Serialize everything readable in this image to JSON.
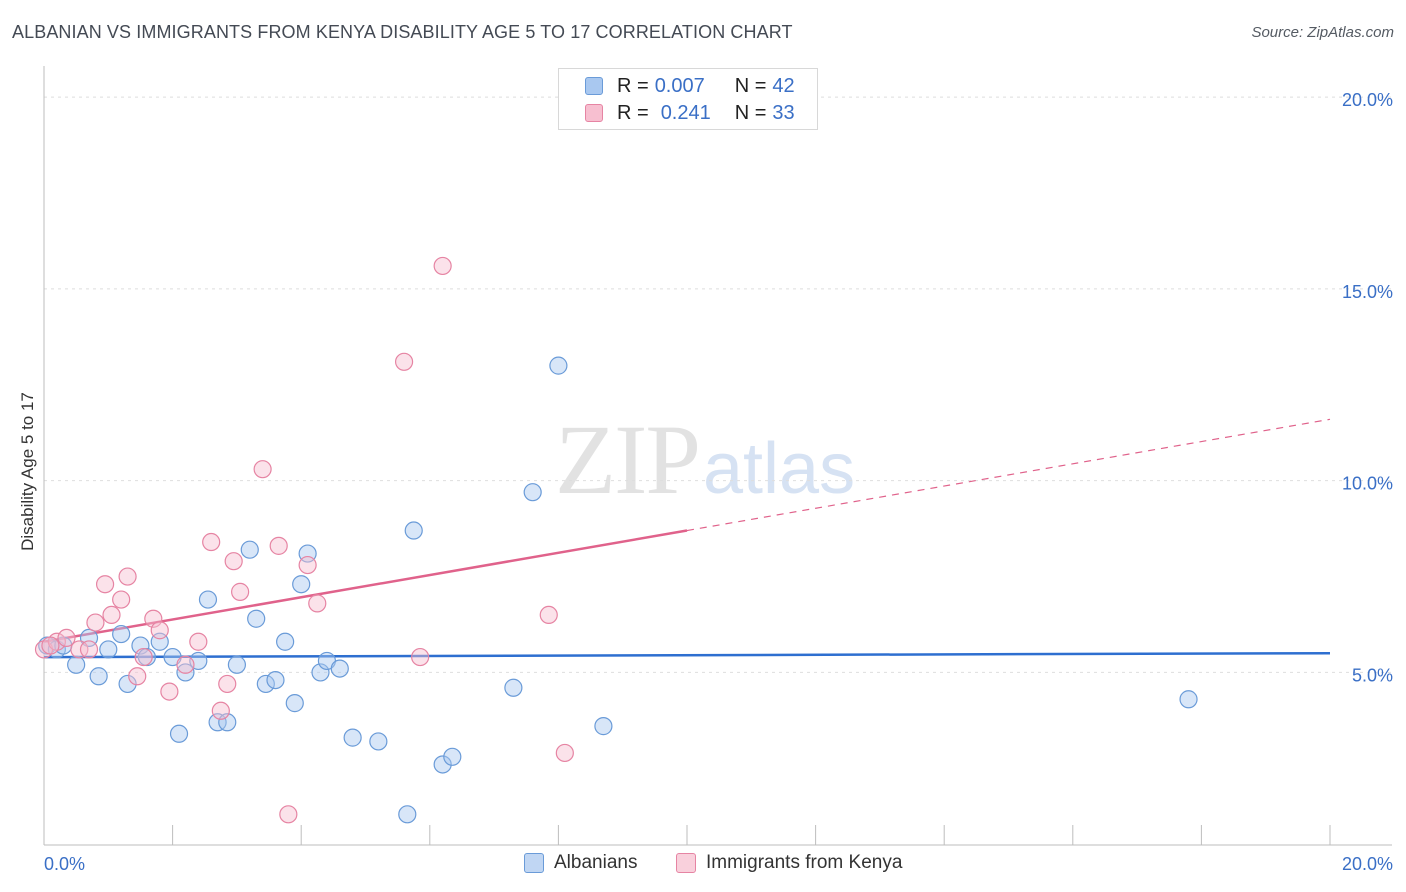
{
  "title": "ALBANIAN VS IMMIGRANTS FROM KENYA DISABILITY AGE 5 TO 17 CORRELATION CHART",
  "source": "Source: ZipAtlas.com",
  "watermark": {
    "zip": "ZIP",
    "atlas": "atlas"
  },
  "legend": {
    "rows": [
      {
        "r_label": "R = ",
        "r_value": "0.007",
        "n_label": "N = ",
        "n_value": "42",
        "color": "#a9c8f0",
        "border": "#6a9bd8"
      },
      {
        "r_label": "R = ",
        "r_value": "0.241",
        "n_label": "N = ",
        "n_value": "33",
        "color": "#f7bfd0",
        "border": "#e684a3"
      }
    ]
  },
  "bottom_legend": [
    {
      "label": "Albanians",
      "color": "#c0d6f3",
      "border": "#6a9bd8"
    },
    {
      "label": "Immigrants from Kenya",
      "color": "#f9d0dc",
      "border": "#e684a3"
    }
  ],
  "chart_data": {
    "type": "scatter",
    "title": "ALBANIAN VS IMMIGRANTS FROM KENYA DISABILITY AGE 5 TO 17 CORRELATION CHART",
    "xlabel": "",
    "ylabel": "Disability Age 5 to 17",
    "xlim": [
      0,
      20
    ],
    "ylim": [
      0.5,
      20.5
    ],
    "x_tick_labels": [
      {
        "value": 0,
        "label": "0.0%"
      },
      {
        "value": 20,
        "label": "20.0%"
      }
    ],
    "y_tick_labels": [
      {
        "value": 5,
        "label": "5.0%"
      },
      {
        "value": 10,
        "label": "10.0%"
      },
      {
        "value": 15,
        "label": "15.0%"
      },
      {
        "value": 20,
        "label": "20.0%"
      }
    ],
    "grid": true,
    "legend_position": "top-center",
    "series": [
      {
        "name": "Albanians",
        "color": "#6a9bd8",
        "fill": "#a9c8f0",
        "trend": {
          "x": [
            0,
            20
          ],
          "y": [
            5.4,
            5.5
          ],
          "color": "#2e6fd0"
        },
        "points": [
          [
            0.05,
            5.7
          ],
          [
            0.2,
            5.6
          ],
          [
            0.5,
            5.2
          ],
          [
            0.7,
            5.9
          ],
          [
            0.85,
            4.9
          ],
          [
            1.0,
            5.6
          ],
          [
            1.2,
            6.0
          ],
          [
            1.3,
            4.7
          ],
          [
            1.5,
            5.7
          ],
          [
            1.6,
            5.4
          ],
          [
            1.8,
            5.8
          ],
          [
            2.0,
            5.4
          ],
          [
            2.1,
            3.4
          ],
          [
            2.2,
            5.0
          ],
          [
            2.4,
            5.3
          ],
          [
            2.55,
            6.9
          ],
          [
            2.7,
            3.7
          ],
          [
            2.85,
            3.7
          ],
          [
            3.0,
            5.2
          ],
          [
            3.2,
            8.2
          ],
          [
            3.3,
            6.4
          ],
          [
            3.45,
            4.7
          ],
          [
            3.6,
            4.8
          ],
          [
            3.75,
            5.8
          ],
          [
            3.9,
            4.2
          ],
          [
            4.0,
            7.3
          ],
          [
            4.1,
            8.1
          ],
          [
            4.3,
            5.0
          ],
          [
            4.4,
            5.3
          ],
          [
            4.6,
            5.1
          ],
          [
            4.8,
            3.3
          ],
          [
            5.2,
            3.2
          ],
          [
            5.65,
            1.3
          ],
          [
            5.75,
            8.7
          ],
          [
            6.2,
            2.6
          ],
          [
            6.35,
            2.8
          ],
          [
            7.3,
            4.6
          ],
          [
            7.6,
            9.7
          ],
          [
            8.0,
            13.0
          ],
          [
            8.7,
            3.6
          ],
          [
            17.8,
            4.3
          ],
          [
            0.3,
            5.7
          ]
        ]
      },
      {
        "name": "Immigrants from Kenya",
        "color": "#e684a3",
        "fill": "#f7bfd0",
        "trend": {
          "x": [
            0,
            10
          ],
          "y": [
            5.8,
            8.7
          ],
          "dashed_to": [
            20,
            11.6
          ],
          "color": "#e0628b"
        },
        "points": [
          [
            0.0,
            5.6
          ],
          [
            0.2,
            5.8
          ],
          [
            0.35,
            5.9
          ],
          [
            0.55,
            5.6
          ],
          [
            0.7,
            5.6
          ],
          [
            0.8,
            6.3
          ],
          [
            0.95,
            7.3
          ],
          [
            1.05,
            6.5
          ],
          [
            1.2,
            6.9
          ],
          [
            1.3,
            7.5
          ],
          [
            1.45,
            4.9
          ],
          [
            1.55,
            5.4
          ],
          [
            1.7,
            6.4
          ],
          [
            1.8,
            6.1
          ],
          [
            1.95,
            4.5
          ],
          [
            2.2,
            5.2
          ],
          [
            2.4,
            5.8
          ],
          [
            2.6,
            8.4
          ],
          [
            2.75,
            4.0
          ],
          [
            2.85,
            4.7
          ],
          [
            2.95,
            7.9
          ],
          [
            3.05,
            7.1
          ],
          [
            3.4,
            10.3
          ],
          [
            3.65,
            8.3
          ],
          [
            3.8,
            1.3
          ],
          [
            4.1,
            7.8
          ],
          [
            4.25,
            6.8
          ],
          [
            5.6,
            13.1
          ],
          [
            5.85,
            5.4
          ],
          [
            6.2,
            15.6
          ],
          [
            7.85,
            6.5
          ],
          [
            8.1,
            2.9
          ],
          [
            0.1,
            5.7
          ]
        ]
      }
    ]
  }
}
